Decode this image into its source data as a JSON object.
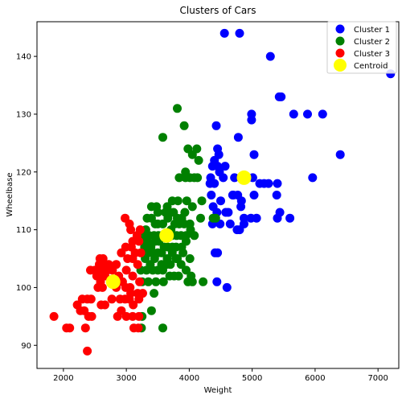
{
  "chart_data": {
    "type": "scatter",
    "title": "Clusters of Cars",
    "xlabel": "Weight",
    "ylabel": "Wheelbase",
    "xlim": [
      1580,
      7330
    ],
    "ylim": [
      86,
      146
    ],
    "xticks": [
      2000,
      3000,
      4000,
      5000,
      6000,
      7000
    ],
    "yticks": [
      90,
      100,
      110,
      120,
      130,
      140
    ],
    "grid": false,
    "legend_position": "top-right",
    "series": [
      {
        "name": "Cluster 1",
        "color": "#0000ff",
        "points": [
          [
            4560,
            144
          ],
          [
            4800,
            144
          ],
          [
            5290,
            140
          ],
          [
            7200,
            137
          ],
          [
            5430,
            133
          ],
          [
            5460,
            133
          ],
          [
            4990,
            130
          ],
          [
            4990,
            129
          ],
          [
            5660,
            130
          ],
          [
            5880,
            130
          ],
          [
            6120,
            130
          ],
          [
            4430,
            128
          ],
          [
            4780,
            126
          ],
          [
            6400,
            123
          ],
          [
            5030,
            123
          ],
          [
            4450,
            124
          ],
          [
            4470,
            123
          ],
          [
            4400,
            122
          ],
          [
            4450,
            121
          ],
          [
            4370,
            121
          ],
          [
            4570,
            121
          ],
          [
            4480,
            120
          ],
          [
            4540,
            119
          ],
          [
            4340,
            119
          ],
          [
            4330,
            118
          ],
          [
            4400,
            118
          ],
          [
            4720,
            119
          ],
          [
            5010,
            119
          ],
          [
            5960,
            119
          ],
          [
            5190,
            118
          ],
          [
            5260,
            118
          ],
          [
            5400,
            118
          ],
          [
            4690,
            116
          ],
          [
            4770,
            116
          ],
          [
            4830,
            115
          ],
          [
            5030,
            116
          ],
          [
            5390,
            116
          ],
          [
            4350,
            116
          ],
          [
            4500,
            115
          ],
          [
            4580,
            113
          ],
          [
            4620,
            113
          ],
          [
            4440,
            113
          ],
          [
            4380,
            114
          ],
          [
            4820,
            114
          ],
          [
            4870,
            112
          ],
          [
            4980,
            112
          ],
          [
            5070,
            112
          ],
          [
            5400,
            112
          ],
          [
            5440,
            113
          ],
          [
            5600,
            112
          ],
          [
            4650,
            111
          ],
          [
            4370,
            111
          ],
          [
            4490,
            111
          ],
          [
            4760,
            110
          ],
          [
            4800,
            110
          ],
          [
            4870,
            111
          ],
          [
            4410,
            106
          ],
          [
            4450,
            106
          ],
          [
            4440,
            101
          ],
          [
            4600,
            100
          ],
          [
            5120,
            118
          ],
          [
            4700,
            116
          ]
        ]
      },
      {
        "name": "Cluster 2",
        "color": "#008000",
        "points": [
          [
            3810,
            131
          ],
          [
            3920,
            128
          ],
          [
            3580,
            126
          ],
          [
            3980,
            124
          ],
          [
            4120,
            124
          ],
          [
            4050,
            123
          ],
          [
            4150,
            122
          ],
          [
            3940,
            120
          ],
          [
            3840,
            119
          ],
          [
            3940,
            119
          ],
          [
            4010,
            119
          ],
          [
            4080,
            119
          ],
          [
            4130,
            119
          ],
          [
            3820,
            115
          ],
          [
            3730,
            115
          ],
          [
            3650,
            114
          ],
          [
            3750,
            113
          ],
          [
            3960,
            115
          ],
          [
            4050,
            114
          ],
          [
            4200,
            115
          ],
          [
            3400,
            114
          ],
          [
            3480,
            114
          ],
          [
            3500,
            113
          ],
          [
            3620,
            113
          ],
          [
            3690,
            113
          ],
          [
            3810,
            112
          ],
          [
            3880,
            112
          ],
          [
            3930,
            113
          ],
          [
            3330,
            112
          ],
          [
            3400,
            112
          ],
          [
            3460,
            111
          ],
          [
            3500,
            111
          ],
          [
            3580,
            111
          ],
          [
            3660,
            112
          ],
          [
            3710,
            110
          ],
          [
            3770,
            111
          ],
          [
            3840,
            111
          ],
          [
            3920,
            111
          ],
          [
            4010,
            111
          ],
          [
            4180,
            112
          ],
          [
            3240,
            109
          ],
          [
            3310,
            110
          ],
          [
            3360,
            109
          ],
          [
            3440,
            109
          ],
          [
            3510,
            109
          ],
          [
            3570,
            109
          ],
          [
            3720,
            109
          ],
          [
            3800,
            109
          ],
          [
            3870,
            109
          ],
          [
            3950,
            109
          ],
          [
            4020,
            110
          ],
          [
            4080,
            109
          ],
          [
            3290,
            107
          ],
          [
            3330,
            108
          ],
          [
            3390,
            107
          ],
          [
            3460,
            108
          ],
          [
            3520,
            108
          ],
          [
            3600,
            107
          ],
          [
            3660,
            107
          ],
          [
            3730,
            107
          ],
          [
            3790,
            107
          ],
          [
            3880,
            107
          ],
          [
            3950,
            108
          ],
          [
            3350,
            106
          ],
          [
            3430,
            106
          ],
          [
            3500,
            106
          ],
          [
            3560,
            106
          ],
          [
            3650,
            105
          ],
          [
            3730,
            106
          ],
          [
            3810,
            105
          ],
          [
            3900,
            106
          ],
          [
            4010,
            105
          ],
          [
            3300,
            105
          ],
          [
            3380,
            104
          ],
          [
            3450,
            105
          ],
          [
            3560,
            104
          ],
          [
            3640,
            104
          ],
          [
            3700,
            104
          ],
          [
            3790,
            105
          ],
          [
            3870,
            104
          ],
          [
            3230,
            103
          ],
          [
            3320,
            103
          ],
          [
            3420,
            103
          ],
          [
            3500,
            103
          ],
          [
            3580,
            103
          ],
          [
            3690,
            102
          ],
          [
            3760,
            102
          ],
          [
            3830,
            102
          ],
          [
            3950,
            103
          ],
          [
            4030,
            102
          ],
          [
            3250,
            101
          ],
          [
            3350,
            101
          ],
          [
            3470,
            101
          ],
          [
            3590,
            101
          ],
          [
            3980,
            101
          ],
          [
            4050,
            101
          ],
          [
            4220,
            101
          ],
          [
            4420,
            112
          ],
          [
            4380,
            112
          ],
          [
            3440,
            99
          ],
          [
            3400,
            96
          ],
          [
            3250,
            95
          ],
          [
            3240,
            93
          ],
          [
            3580,
            93
          ]
        ]
      },
      {
        "name": "Cluster 3",
        "color": "#ff0000",
        "points": [
          [
            2980,
            112
          ],
          [
            3050,
            111
          ],
          [
            3070,
            110
          ],
          [
            3220,
            110
          ],
          [
            3170,
            109
          ],
          [
            3100,
            108
          ],
          [
            3200,
            108
          ],
          [
            2990,
            107
          ],
          [
            3080,
            107
          ],
          [
            3140,
            106
          ],
          [
            2920,
            106
          ],
          [
            3020,
            105
          ],
          [
            3100,
            105
          ],
          [
            3180,
            104
          ],
          [
            3230,
            106
          ],
          [
            2580,
            105
          ],
          [
            2630,
            105
          ],
          [
            2720,
            104
          ],
          [
            2840,
            104
          ],
          [
            2570,
            104
          ],
          [
            2680,
            104
          ],
          [
            2430,
            103
          ],
          [
            2500,
            103
          ],
          [
            2620,
            103
          ],
          [
            2700,
            103
          ],
          [
            2780,
            103
          ],
          [
            2880,
            102
          ],
          [
            3000,
            103
          ],
          [
            3100,
            102
          ],
          [
            2530,
            102
          ],
          [
            2590,
            101
          ],
          [
            2660,
            102
          ],
          [
            2750,
            101
          ],
          [
            2840,
            100
          ],
          [
            2940,
            101
          ],
          [
            3060,
            100
          ],
          [
            3210,
            101
          ],
          [
            2550,
            100
          ],
          [
            2620,
            100
          ],
          [
            2990,
            100
          ],
          [
            3070,
            99
          ],
          [
            3180,
            99
          ],
          [
            3260,
            99
          ],
          [
            2900,
            98
          ],
          [
            2980,
            98
          ],
          [
            3050,
            98
          ],
          [
            3110,
            97
          ],
          [
            3200,
            98
          ],
          [
            2300,
            98
          ],
          [
            2380,
            98
          ],
          [
            2440,
            98
          ],
          [
            2600,
            97
          ],
          [
            2660,
            97
          ],
          [
            2770,
            98
          ],
          [
            2220,
            97
          ],
          [
            2270,
            96
          ],
          [
            2330,
            96
          ],
          [
            2400,
            95
          ],
          [
            2450,
            95
          ],
          [
            2920,
            96
          ],
          [
            3000,
            95
          ],
          [
            3100,
            95
          ],
          [
            3200,
            95
          ],
          [
            2860,
            95
          ],
          [
            1850,
            95
          ],
          [
            2050,
            93
          ],
          [
            2100,
            93
          ],
          [
            2350,
            93
          ],
          [
            3120,
            93
          ],
          [
            3190,
            93
          ],
          [
            2380,
            89
          ]
        ]
      }
    ],
    "centroids": {
      "name": "Centroid",
      "color": "#ffff00",
      "points": [
        [
          4870,
          119
        ],
        [
          3640,
          109
        ],
        [
          2790,
          101
        ]
      ]
    }
  }
}
